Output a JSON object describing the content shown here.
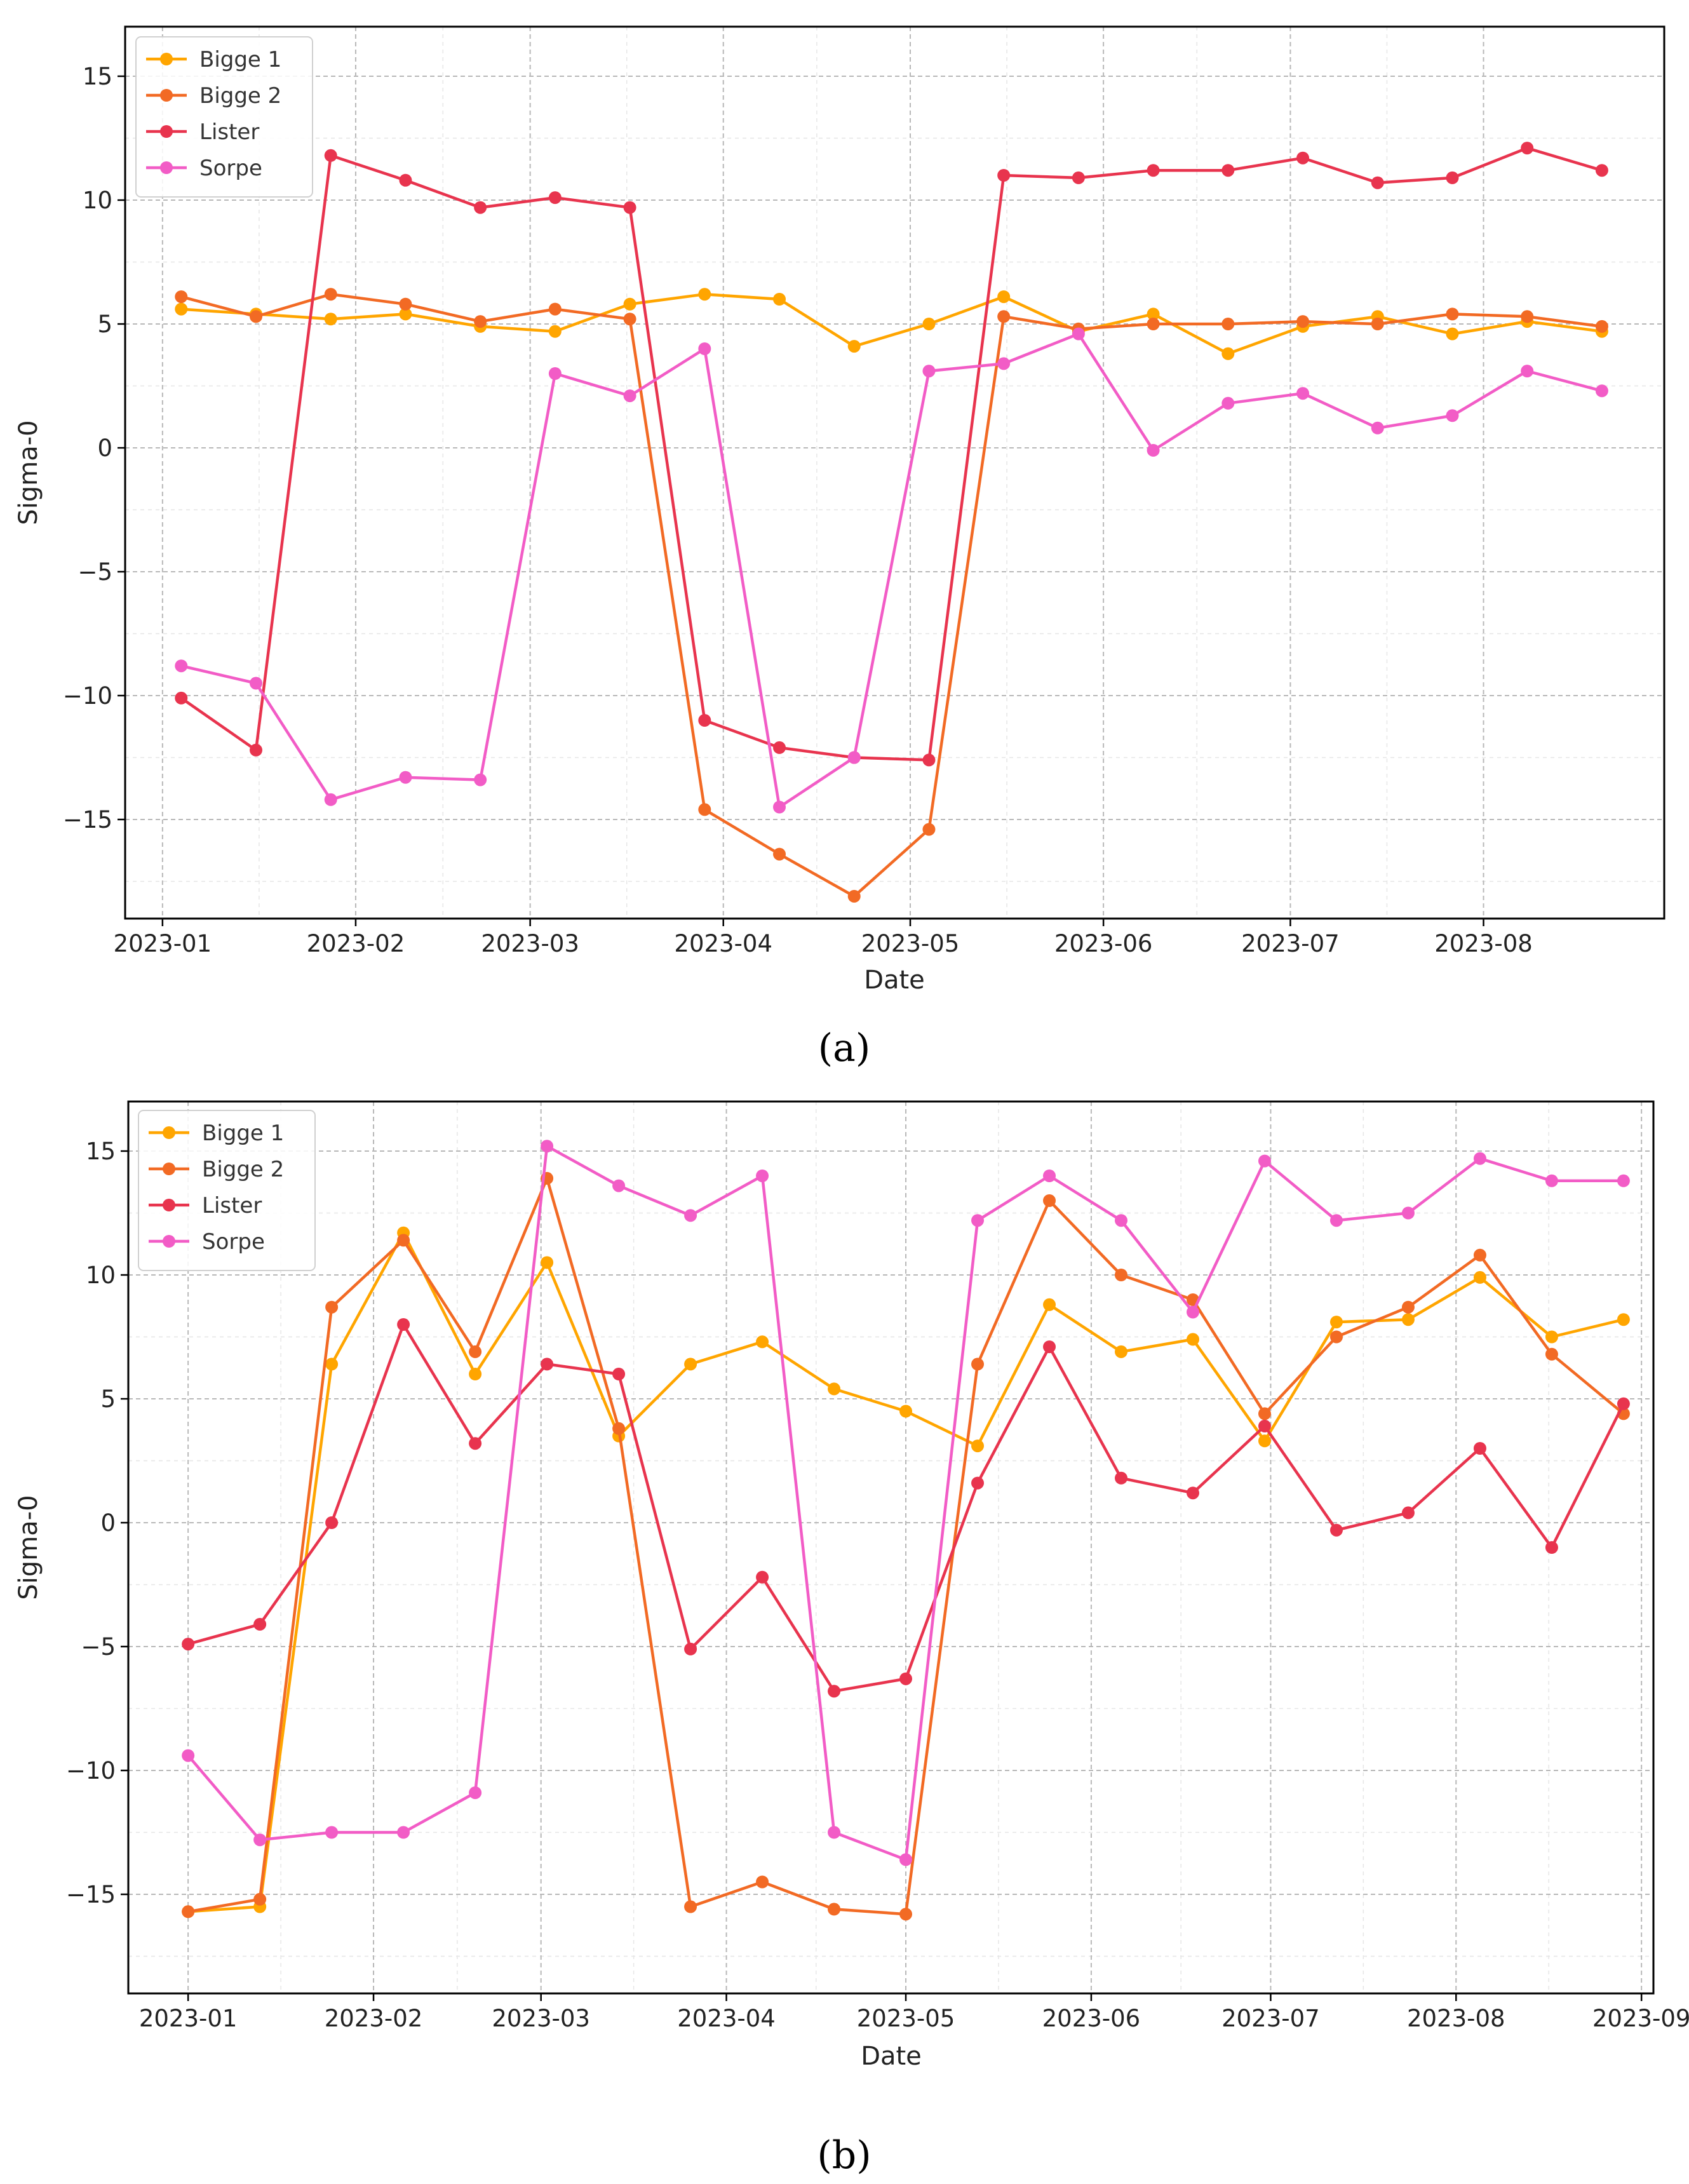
{
  "chart_data": [
    {
      "type": "line",
      "caption": "(a)",
      "xlabel": "Date",
      "ylabel": "Sigma-0",
      "ylim": [
        -19,
        17
      ],
      "xlim": [
        "2022-12-26",
        "2023-08-30"
      ],
      "grid": true,
      "legend_position": "top-left",
      "yticks": [
        15,
        10,
        5,
        0,
        -5,
        -10,
        -15
      ],
      "ytick_labels": [
        "15",
        "10",
        "5",
        "0",
        "−5",
        "−10",
        "−15"
      ],
      "xticks": [
        "2023-01-01",
        "2023-02-01",
        "2023-03-01",
        "2023-04-01",
        "2023-05-01",
        "2023-06-01",
        "2023-07-01",
        "2023-08-01"
      ],
      "xtick_labels": [
        "2023-01",
        "2023-02",
        "2023-03",
        "2023-04",
        "2023-05",
        "2023-06",
        "2023-07",
        "2023-08"
      ],
      "x": [
        "2023-01-04",
        "2023-01-16",
        "2023-01-28",
        "2023-02-09",
        "2023-02-21",
        "2023-03-05",
        "2023-03-17",
        "2023-03-29",
        "2023-04-10",
        "2023-04-22",
        "2023-05-04",
        "2023-05-16",
        "2023-05-28",
        "2023-06-09",
        "2023-06-21",
        "2023-07-03",
        "2023-07-15",
        "2023-07-27",
        "2023-08-08",
        "2023-08-20"
      ],
      "series": [
        {
          "name": "Bigge 1",
          "color": "#FFA500",
          "values": [
            5.6,
            5.4,
            5.2,
            5.4,
            4.9,
            4.7,
            5.8,
            6.2,
            6.0,
            4.1,
            5.0,
            6.1,
            4.7,
            5.4,
            3.8,
            4.9,
            5.3,
            4.6,
            5.1,
            4.7
          ]
        },
        {
          "name": "Bigge 2",
          "color": "#F26A24",
          "values": [
            6.1,
            5.3,
            6.2,
            5.8,
            5.1,
            5.6,
            5.2,
            -14.6,
            -16.4,
            -18.1,
            -15.4,
            5.3,
            4.8,
            5.0,
            5.0,
            5.1,
            5.0,
            5.4,
            5.3,
            4.9
          ]
        },
        {
          "name": "Lister",
          "color": "#E8344E",
          "values": [
            -10.1,
            -12.2,
            11.8,
            10.8,
            9.7,
            10.1,
            9.7,
            -11.0,
            -12.1,
            -12.5,
            -12.6,
            11.0,
            10.9,
            11.2,
            11.2,
            11.7,
            10.7,
            10.9,
            12.1,
            11.2
          ]
        },
        {
          "name": "Sorpe",
          "color": "#F25CC6",
          "values": [
            -8.8,
            -9.5,
            -14.2,
            -13.3,
            -13.4,
            3.0,
            2.1,
            4.0,
            -14.5,
            -12.5,
            3.1,
            3.4,
            4.6,
            -0.1,
            1.8,
            2.2,
            0.8,
            1.3,
            3.1,
            2.3
          ]
        }
      ]
    },
    {
      "type": "line",
      "caption": "(b)",
      "xlabel": "Date",
      "ylabel": "Sigma-0",
      "ylim": [
        -19,
        17
      ],
      "xlim": [
        "2022-12-22",
        "2023-09-03"
      ],
      "grid": true,
      "legend_position": "top-left",
      "yticks": [
        15,
        10,
        5,
        0,
        -5,
        -10,
        -15
      ],
      "ytick_labels": [
        "15",
        "10",
        "5",
        "0",
        "−5",
        "−10",
        "−15"
      ],
      "xticks": [
        "2023-01-01",
        "2023-02-01",
        "2023-03-01",
        "2023-04-01",
        "2023-05-01",
        "2023-06-01",
        "2023-07-01",
        "2023-08-01",
        "2023-09-01"
      ],
      "xtick_labels": [
        "2023-01",
        "2023-02",
        "2023-03",
        "2023-04",
        "2023-05",
        "2023-06",
        "2023-07",
        "2023-08",
        "2023-09"
      ],
      "x": [
        "2023-01-01",
        "2023-01-13",
        "2023-01-25",
        "2023-02-06",
        "2023-02-18",
        "2023-03-02",
        "2023-03-14",
        "2023-03-26",
        "2023-04-07",
        "2023-04-19",
        "2023-05-01",
        "2023-05-13",
        "2023-05-25",
        "2023-06-06",
        "2023-06-18",
        "2023-06-30",
        "2023-07-12",
        "2023-07-24",
        "2023-08-05",
        "2023-08-17",
        "2023-08-29"
      ],
      "series": [
        {
          "name": "Bigge 1",
          "color": "#FFA500",
          "values": [
            -15.7,
            -15.5,
            6.4,
            11.7,
            6.0,
            10.5,
            3.5,
            6.4,
            7.3,
            5.4,
            4.5,
            3.1,
            8.8,
            6.9,
            7.4,
            3.3,
            8.1,
            8.2,
            9.9,
            7.5,
            8.2
          ]
        },
        {
          "name": "Bigge 2",
          "color": "#F26A24",
          "values": [
            -15.7,
            -15.2,
            8.7,
            11.4,
            6.9,
            13.9,
            3.8,
            -15.5,
            -14.5,
            -15.6,
            -15.8,
            6.4,
            13.0,
            10.0,
            9.0,
            4.4,
            7.5,
            8.7,
            10.8,
            6.8,
            4.4
          ]
        },
        {
          "name": "Lister",
          "color": "#E8344E",
          "values": [
            -4.9,
            -4.1,
            0.0,
            8.0,
            3.2,
            6.4,
            6.0,
            -5.1,
            -2.2,
            -6.8,
            -6.3,
            1.6,
            7.1,
            1.8,
            1.2,
            3.9,
            -0.3,
            0.4,
            3.0,
            -1.0,
            4.8
          ]
        },
        {
          "name": "Sorpe",
          "color": "#F25CC6",
          "values": [
            -9.4,
            -12.8,
            -12.5,
            -12.5,
            -10.9,
            15.2,
            13.6,
            12.4,
            14.0,
            -12.5,
            -13.6,
            12.2,
            14.0,
            12.2,
            8.5,
            14.6,
            12.2,
            12.5,
            14.7,
            13.8,
            13.8
          ]
        }
      ]
    }
  ]
}
